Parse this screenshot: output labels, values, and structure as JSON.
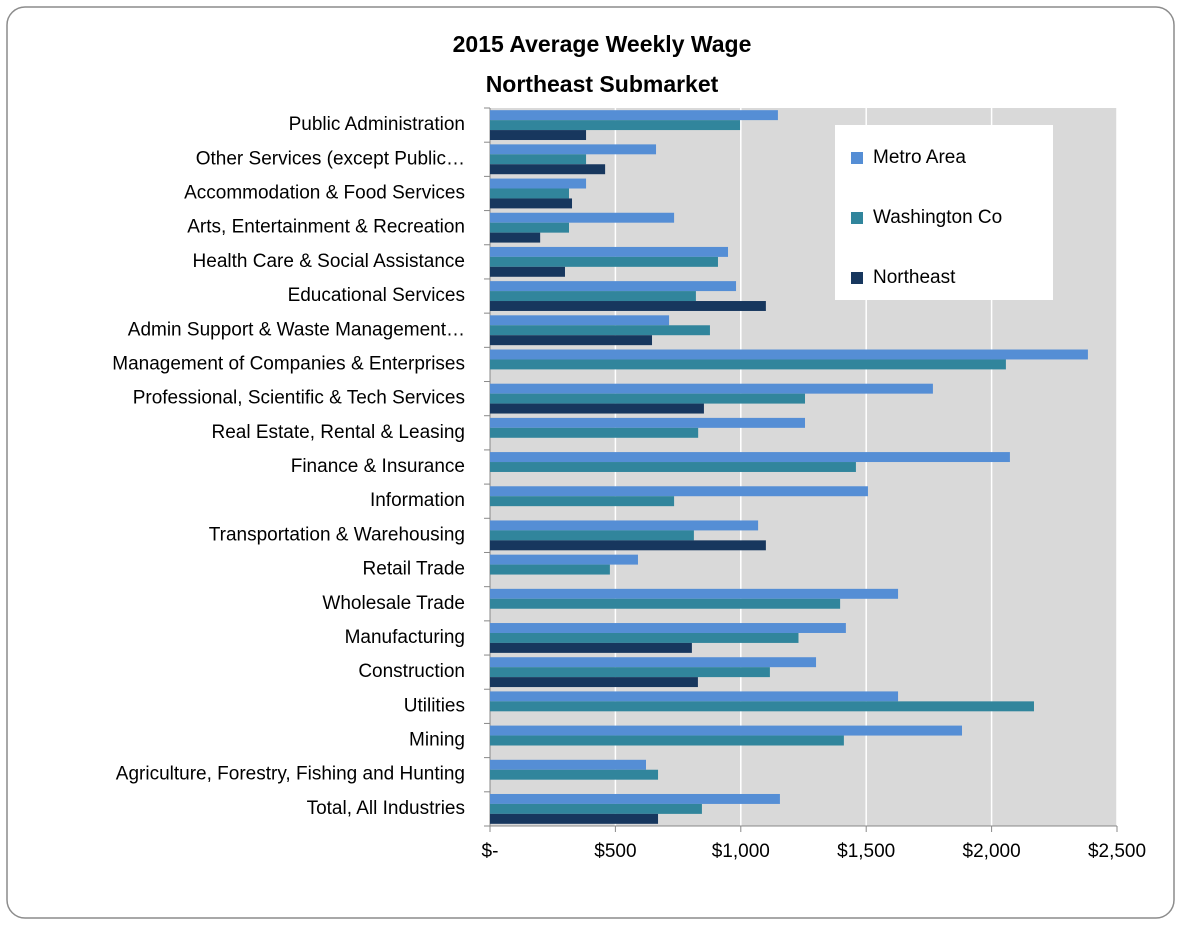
{
  "chart_data": {
    "type": "bar",
    "orientation": "horizontal",
    "title": "2015 Average Weekly Wage",
    "subtitle": "Northeast Submarket",
    "categories": [
      "Public Administration",
      "Other Services (except Public…",
      "Accommodation & Food Services",
      "Arts, Entertainment & Recreation",
      "Health Care & Social Assistance",
      "Educational Services",
      "Admin Support & Waste Management…",
      "Management of Companies & Enterprises",
      "Professional, Scientific & Tech Services",
      "Real Estate, Rental & Leasing",
      "Finance & Insurance",
      "Information",
      "Transportation & Warehousing",
      "Retail Trade",
      "Wholesale Trade",
      "Manufacturing",
      "Construction",
      "Utilities",
      "Mining",
      "Agriculture, Forestry, Fishing and Hunting",
      "Total, All Industries"
    ],
    "series": [
      {
        "name": "Metro Area",
        "color": "#558ed5",
        "values": [
          1148,
          662,
          383,
          734,
          949,
          981,
          714,
          2384,
          1766,
          1256,
          2073,
          1507,
          1069,
          590,
          1627,
          1419,
          1300,
          1627,
          1882,
          622,
          1156
        ]
      },
      {
        "name": "Washington Co",
        "color": "#31859c",
        "values": [
          997,
          383,
          315,
          315,
          909,
          821,
          877,
          2057,
          1256,
          830,
          1459,
          734,
          813,
          478,
          1396,
          1230,
          1116,
          2169,
          1411,
          670,
          845
        ]
      },
      {
        "name": "Northeast",
        "color": "#17375e",
        "values": [
          383,
          459,
          327,
          200,
          299,
          1100,
          646,
          null,
          853,
          null,
          null,
          null,
          1100,
          null,
          null,
          805,
          829,
          null,
          null,
          null,
          670
        ]
      }
    ],
    "xlim": [
      0,
      2500
    ],
    "xticks": [
      {
        "value": 0,
        "label": "$-"
      },
      {
        "value": 500,
        "label": "$500"
      },
      {
        "value": 1000,
        "label": "$1,000"
      },
      {
        "value": 1500,
        "label": "$1,500"
      },
      {
        "value": 2000,
        "label": "$2,000"
      },
      {
        "value": 2500,
        "label": "$2,500"
      }
    ],
    "grid": true,
    "legend": "upper right"
  }
}
